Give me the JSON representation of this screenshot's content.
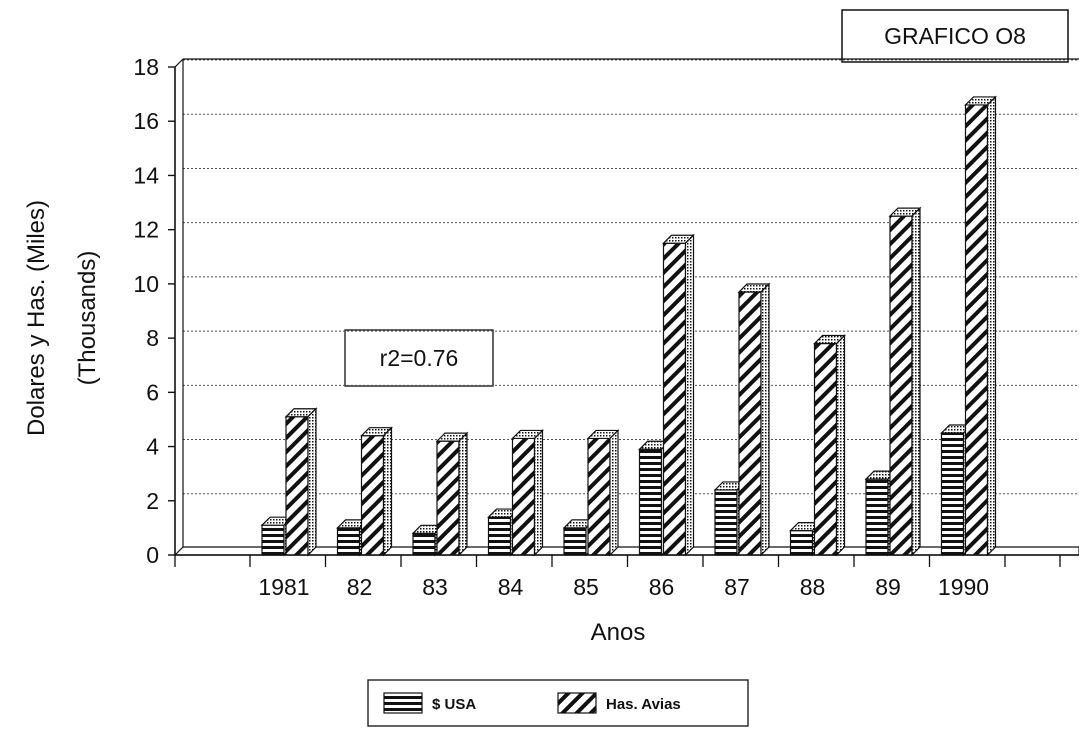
{
  "chart_data": {
    "type": "bar",
    "title": "GRAFICO O8",
    "annotation": "r2=0.76",
    "categories": [
      "1981",
      "82",
      "83",
      "84",
      "85",
      "86",
      "87",
      "88",
      "89",
      "1990"
    ],
    "series": [
      {
        "name": "$ USA",
        "values": [
          1.1,
          1.0,
          0.8,
          1.4,
          1.0,
          3.9,
          2.4,
          0.9,
          2.8,
          4.5
        ]
      },
      {
        "name": "Has. Avias",
        "values": [
          5.1,
          4.4,
          4.2,
          4.3,
          4.3,
          11.5,
          9.7,
          7.8,
          12.5,
          16.6
        ]
      }
    ],
    "xlabel": "Anos",
    "ylabel": "Dolares y Has. (Miles)",
    "ylabel2": "(Thousands)",
    "ylim": [
      0,
      18
    ],
    "yticks": [
      "0",
      "2",
      "4",
      "6",
      "8",
      "10",
      "12",
      "14",
      "16",
      "18"
    ],
    "grid": true,
    "legend_position": "bottom-center",
    "colors": {
      "series_1_fill": "#ffffff",
      "series_2_fill": "#ffffff",
      "ink": "#111111",
      "grid": "#555555"
    }
  }
}
